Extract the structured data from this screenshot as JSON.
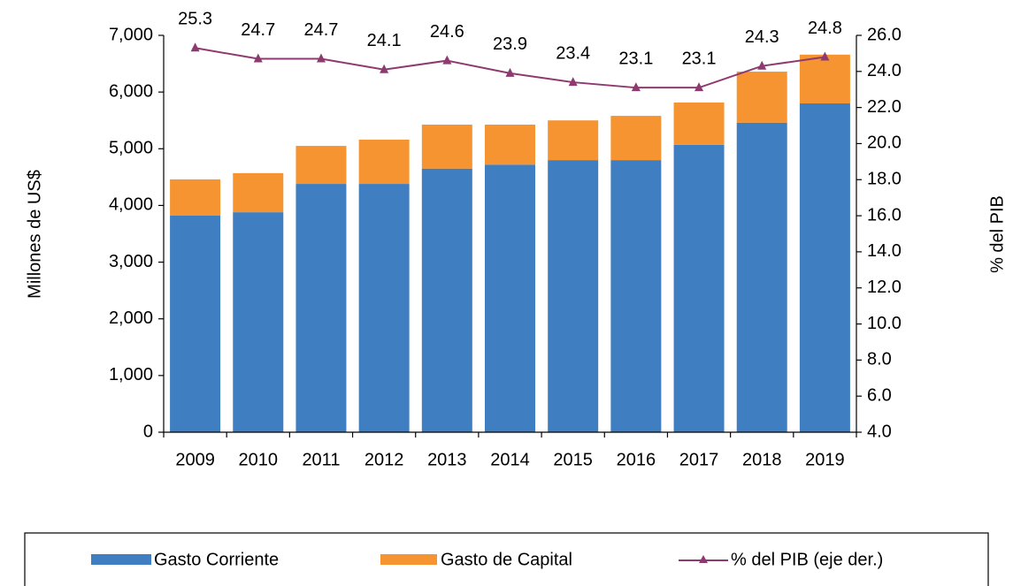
{
  "chart_data": {
    "type": "bar_line",
    "y_label": "Millones de US$",
    "y2_label": "% del PIB",
    "categories": [
      "2009",
      "2010",
      "2011",
      "2012",
      "2013",
      "2014",
      "2015",
      "2016",
      "2017",
      "2018",
      "2019"
    ],
    "series": [
      {
        "name": "Gasto Corriente",
        "color": "#3F7FC1",
        "type": "bar",
        "values": [
          3820,
          3880,
          4380,
          4380,
          4650,
          4720,
          4800,
          4800,
          5070,
          5460,
          5800
        ]
      },
      {
        "name": "Gasto de Capital",
        "color": "#F59431",
        "type": "bar",
        "values": [
          640,
          690,
          670,
          780,
          775,
          705,
          700,
          780,
          745,
          900,
          860
        ]
      },
      {
        "name": "% del PIB (eje der.)",
        "color": "#8E3A70",
        "type": "line",
        "axis": "y2",
        "values": [
          25.3,
          24.7,
          24.7,
          24.1,
          24.6,
          23.9,
          23.4,
          23.1,
          23.1,
          24.3,
          24.8
        ]
      }
    ],
    "ylim": [
      0,
      7000
    ],
    "yticks": [
      0,
      {
        "value": 1000,
        "label": "1,000"
      },
      {
        "value": 2000,
        "label": "2,000"
      },
      {
        "value": 3000,
        "label": "3,000"
      },
      {
        "value": 4000,
        "label": "4,000"
      },
      {
        "value": 5000,
        "label": "5,000"
      },
      {
        "value": 6000,
        "label": "6,000"
      },
      {
        "value": 7000,
        "label": "7,000"
      }
    ],
    "y2lim": [
      4,
      26
    ],
    "y2ticks": [
      {
        "value": 4,
        "label": "4.0"
      },
      {
        "value": 6,
        "label": "6.0"
      },
      {
        "value": 8,
        "label": "8.0"
      },
      {
        "value": 10,
        "label": "10.0"
      },
      {
        "value": 12,
        "label": "12.0"
      },
      {
        "value": 14,
        "label": "14.0"
      },
      {
        "value": 16,
        "label": "16.0"
      },
      {
        "value": 18,
        "label": "18.0"
      },
      {
        "value": 20,
        "label": "20.0"
      },
      {
        "value": 22,
        "label": "22.0"
      },
      {
        "value": 24,
        "label": "24.0"
      },
      {
        "value": 26,
        "label": "26.0"
      }
    ],
    "legend": "bottom"
  }
}
